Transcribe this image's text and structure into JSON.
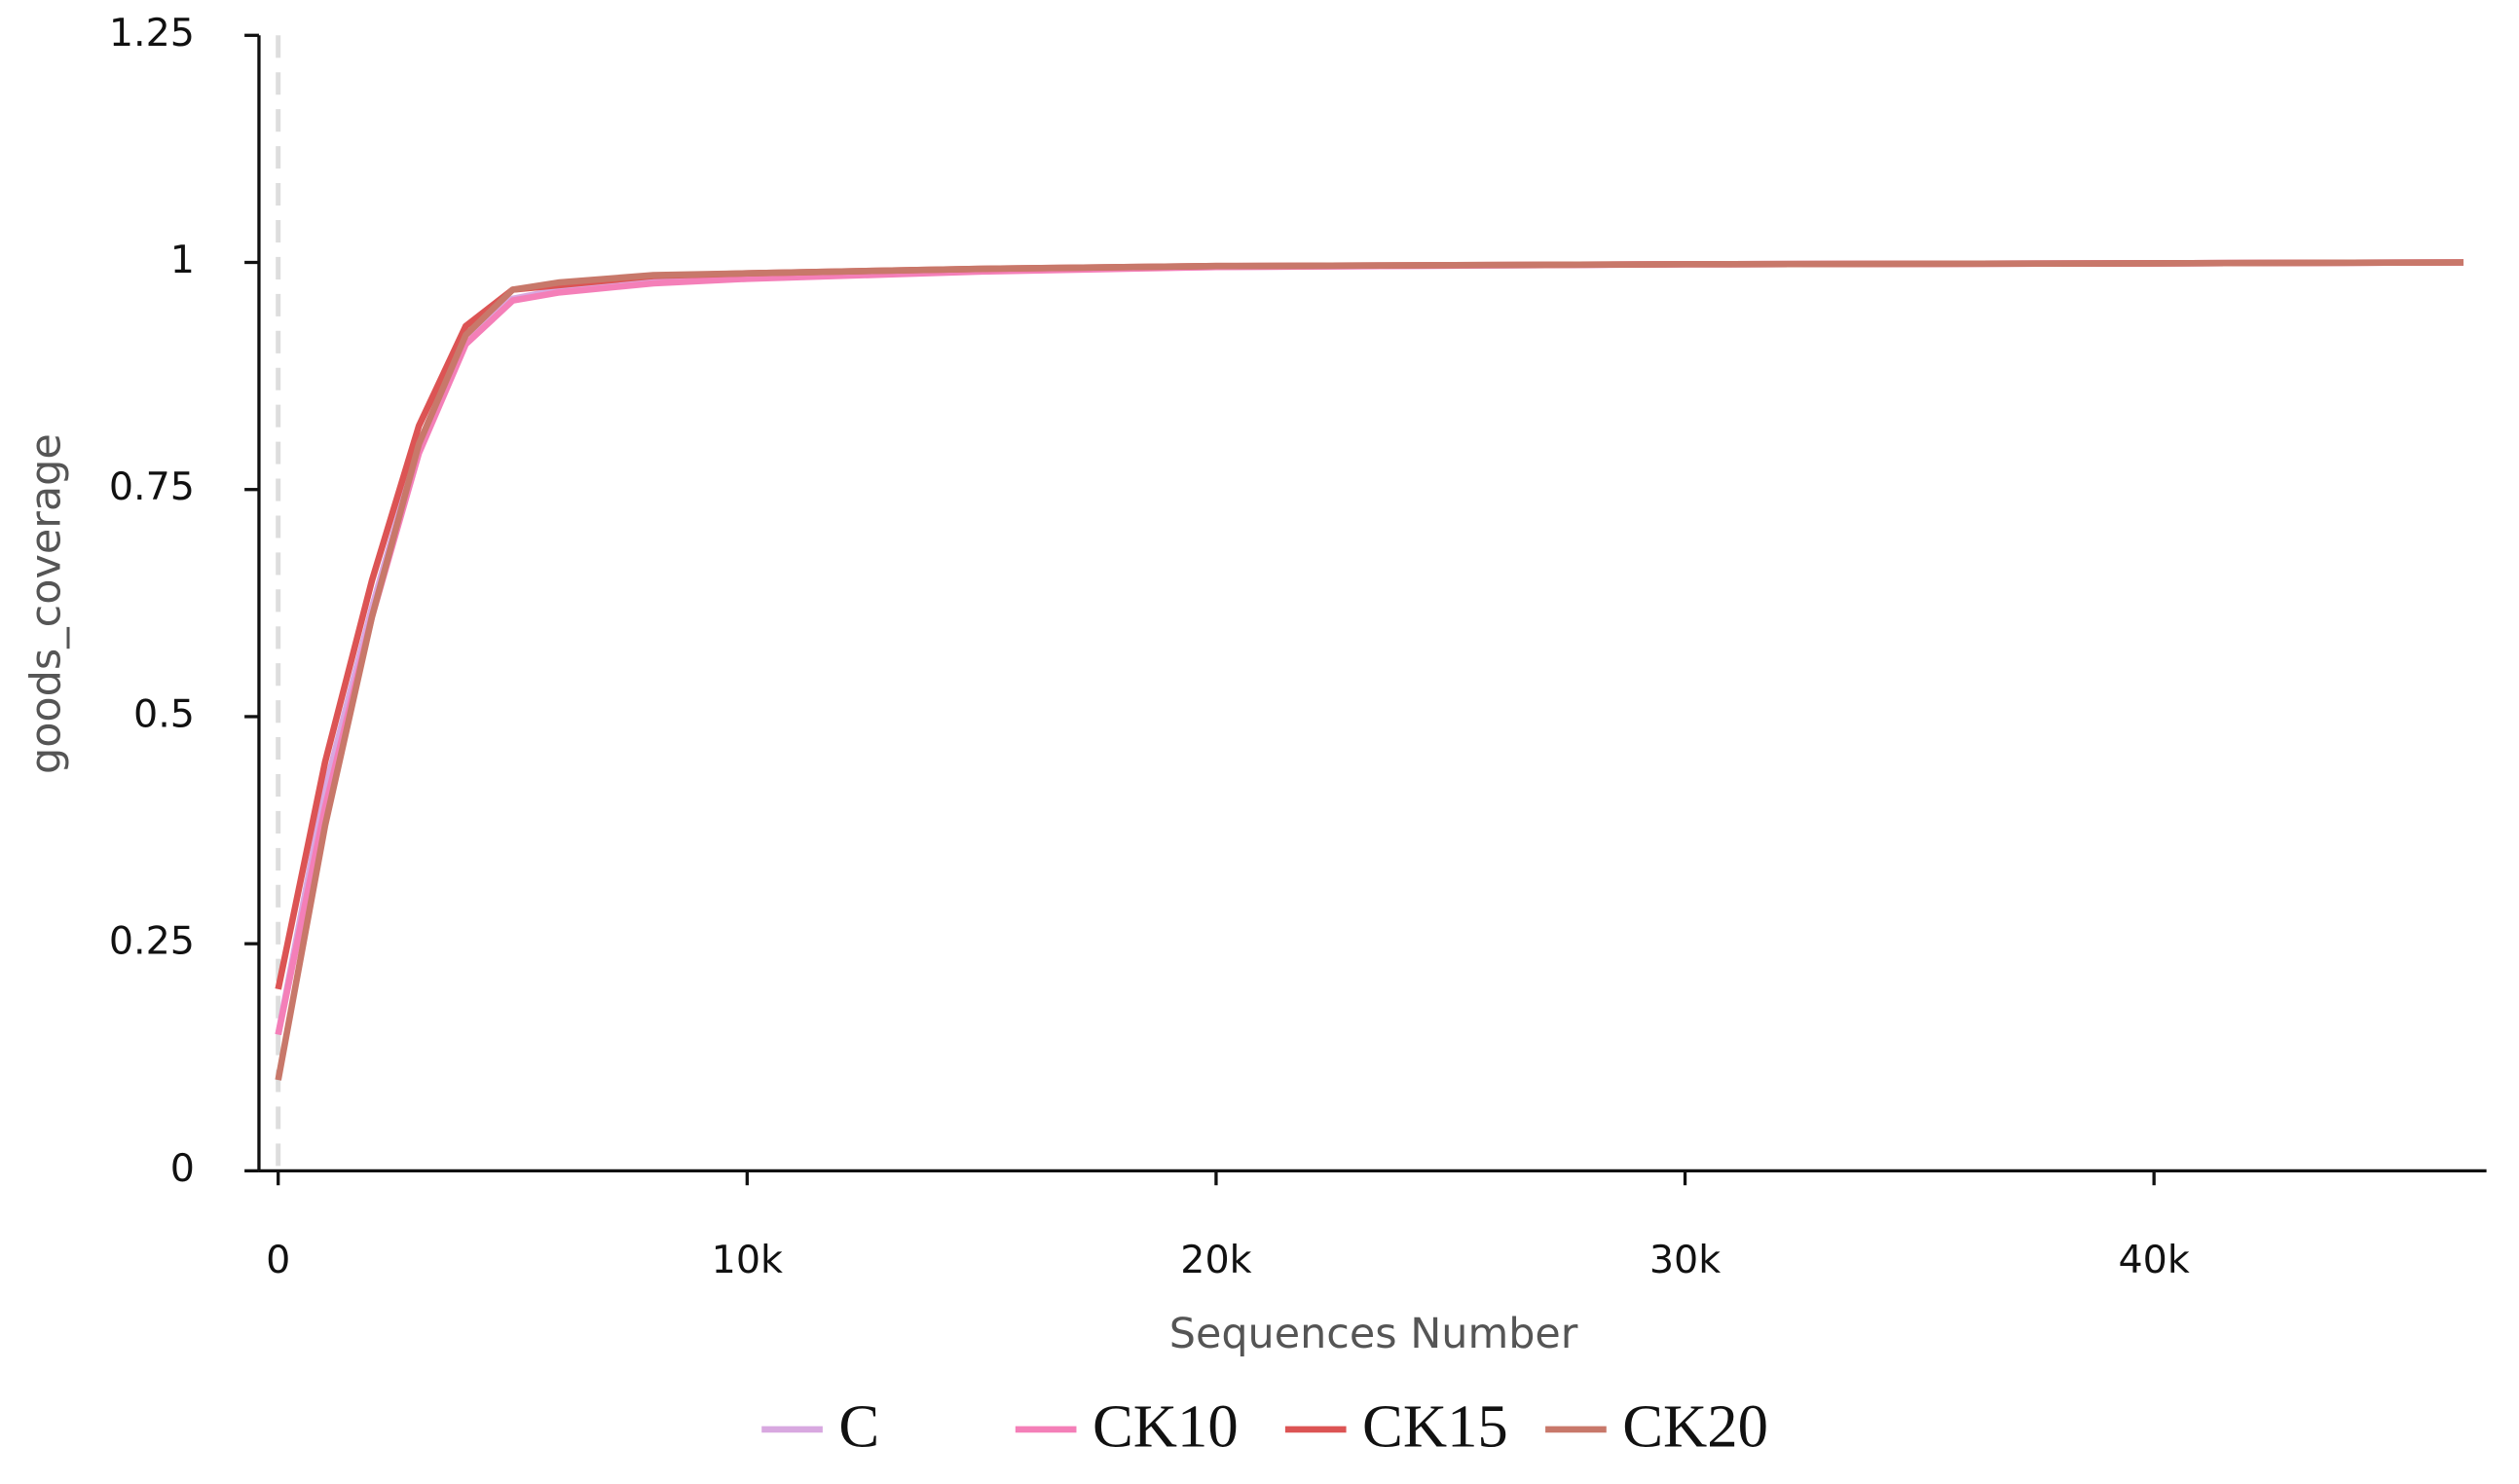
{
  "chart_data": {
    "type": "line",
    "x_label": "Sequences Number",
    "y_label": "goods_coverage",
    "x": [
      0,
      1000,
      2000,
      3000,
      4000,
      5000,
      6000,
      8000,
      10000,
      15000,
      20000,
      30000,
      40000,
      46600
    ],
    "series": [
      {
        "name": "C",
        "color": "#d8a8e0",
        "values": [
          0.15,
          0.42,
          0.62,
          0.8,
          0.92,
          0.96,
          0.97,
          0.98,
          0.985,
          0.992,
          0.995,
          0.998,
          0.999,
          1.0
        ]
      },
      {
        "name": "CK10",
        "color": "#f47fb8",
        "values": [
          0.15,
          0.4,
          0.61,
          0.79,
          0.91,
          0.958,
          0.967,
          0.977,
          0.982,
          0.99,
          0.995,
          0.998,
          0.999,
          1.0
        ]
      },
      {
        "name": "CK15",
        "color": "#dc5454",
        "values": [
          0.2,
          0.45,
          0.65,
          0.82,
          0.93,
          0.97,
          0.975,
          0.985,
          0.988,
          0.993,
          0.996,
          0.998,
          0.999,
          1.0
        ]
      },
      {
        "name": "CK20",
        "color": "#c8786a",
        "values": [
          0.1,
          0.38,
          0.61,
          0.8,
          0.92,
          0.97,
          0.978,
          0.986,
          0.988,
          0.993,
          0.996,
          0.998,
          0.999,
          1.0
        ]
      }
    ],
    "xlim": [
      -410,
      47090
    ],
    "ylim": [
      0,
      1.25
    ],
    "xticks": [
      0,
      {
        "value": 10000,
        "label": "10k"
      },
      {
        "value": 20000,
        "label": "20k"
      },
      {
        "value": 30000,
        "label": "30k"
      },
      {
        "value": 40000,
        "label": "40k"
      }
    ],
    "yticks": [
      0,
      0.25,
      0.5,
      0.75,
      1,
      1.25
    ],
    "reference_line_x": 0,
    "legend": "bottom"
  }
}
